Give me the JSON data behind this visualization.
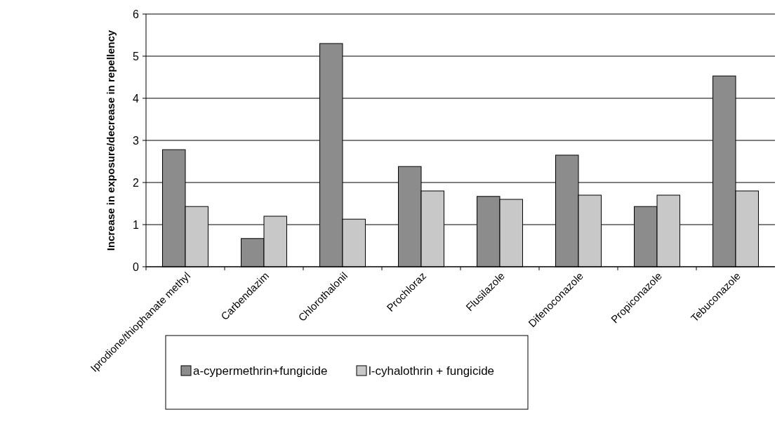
{
  "chart_data": {
    "type": "bar",
    "ylabel": "Increase in exposure/decrease in repellency",
    "categories": [
      "Iprodione/thiophanate methyl",
      "Carbendazim",
      "Chlorothalonil",
      "Prochloraz",
      "Flusilazole",
      "Difenoconazole",
      "Propiconazole",
      "Tebuconazole"
    ],
    "series": [
      {
        "name": "a-cypermethrin+fungicide",
        "color": "#8c8c8c",
        "values": [
          2.78,
          0.67,
          5.3,
          2.38,
          1.67,
          2.65,
          1.43,
          4.53
        ]
      },
      {
        "name": "l-cyhalothrin + fungicide",
        "color": "#c8c8c8",
        "values": [
          1.43,
          1.2,
          1.13,
          1.8,
          1.6,
          1.7,
          1.7,
          1.8
        ]
      }
    ],
    "ylim": [
      0,
      6
    ],
    "yticks": [
      0,
      1,
      2,
      3,
      4,
      5,
      6
    ],
    "grid": "y",
    "legend": "bottom"
  }
}
